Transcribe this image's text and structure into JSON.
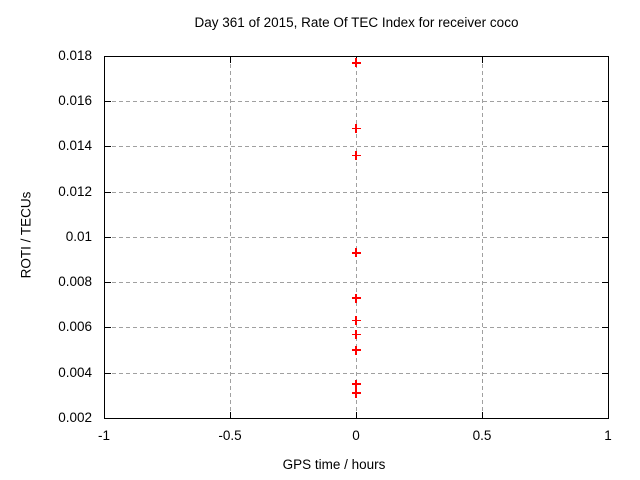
{
  "chart_data": {
    "type": "scatter",
    "title": "Day 361 of 2015, Rate Of TEC Index for receiver coco",
    "xlabel": "GPS time / hours",
    "ylabel": "ROTI / TECUs",
    "xlim": [
      -1,
      1
    ],
    "ylim": [
      0.002,
      0.018
    ],
    "x_ticks": [
      {
        "value": -1,
        "label": "-1"
      },
      {
        "value": -0.5,
        "label": "-0.5"
      },
      {
        "value": 0,
        "label": "0"
      },
      {
        "value": 0.5,
        "label": "0.5"
      },
      {
        "value": 1,
        "label": "1"
      }
    ],
    "y_ticks": [
      {
        "value": 0.002,
        "label": "0.002"
      },
      {
        "value": 0.004,
        "label": "0.004"
      },
      {
        "value": 0.006,
        "label": "0.006"
      },
      {
        "value": 0.008,
        "label": "0.008"
      },
      {
        "value": 0.01,
        "label": "0.01"
      },
      {
        "value": 0.012,
        "label": "0.012"
      },
      {
        "value": 0.014,
        "label": "0.014"
      },
      {
        "value": 0.016,
        "label": "0.016"
      },
      {
        "value": 0.018,
        "label": "0.018"
      }
    ],
    "grid": true,
    "legend": "none",
    "marker": {
      "shape": "plus",
      "color": "#ff0000",
      "size": 9
    },
    "colors": {
      "axis": "#000000",
      "grid": "#a0a0a0",
      "background": "#ffffff",
      "text": "#000000"
    },
    "series": [
      {
        "name": "ROTI",
        "x": [
          0,
          0,
          0,
          0,
          0,
          0,
          0,
          0,
          0,
          0
        ],
        "y": [
          0.0177,
          0.0148,
          0.0136,
          0.0093,
          0.0073,
          0.0063,
          0.0057,
          0.005,
          0.0035,
          0.0031
        ]
      }
    ]
  }
}
